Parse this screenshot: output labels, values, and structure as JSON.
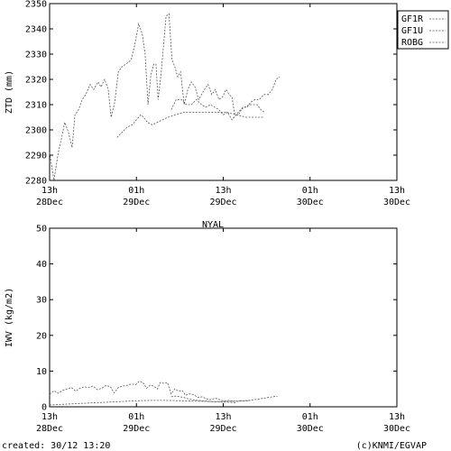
{
  "station": "NYAL",
  "footer": {
    "created": "created: 30/12 13:20",
    "credit": "(c)KNMI/EGVAP"
  },
  "colors": {
    "series": "#555555",
    "axis": "#000000",
    "background": "#ffffff"
  },
  "chart_data": [
    {
      "type": "line",
      "title": "",
      "ylabel": "ZTD (mm)",
      "ylim": [
        2280,
        2350
      ],
      "yticks": [
        2280,
        2290,
        2300,
        2310,
        2320,
        2330,
        2340,
        2350
      ],
      "xlim": [
        0,
        48
      ],
      "xticks": [
        {
          "x": 0,
          "line1": "13h",
          "line2": "28Dec"
        },
        {
          "x": 12,
          "line1": "01h",
          "line2": "29Dec"
        },
        {
          "x": 24,
          "line1": "13h",
          "line2": "29Dec"
        },
        {
          "x": 36,
          "line1": "01h",
          "line2": "30Dec"
        },
        {
          "x": 48,
          "line1": "13h",
          "line2": "30Dec"
        }
      ],
      "legend_position": "top-right",
      "series": [
        {
          "name": "GF1R",
          "points": [
            [
              0,
              2291
            ],
            [
              0.6,
              2280
            ],
            [
              1.2,
              2291
            ],
            [
              1.6,
              2296
            ],
            [
              2.1,
              2303
            ],
            [
              2.6,
              2299
            ],
            [
              3.1,
              2293
            ],
            [
              3.5,
              2306
            ],
            [
              4.0,
              2308
            ],
            [
              4.5,
              2312
            ],
            [
              5.0,
              2314
            ],
            [
              5.6,
              2318
            ],
            [
              6.1,
              2316
            ],
            [
              6.7,
              2319
            ],
            [
              7.1,
              2317
            ],
            [
              7.6,
              2320
            ],
            [
              8.1,
              2316
            ],
            [
              8.5,
              2305
            ],
            [
              9.0,
              2311
            ],
            [
              9.5,
              2323
            ],
            [
              10.0,
              2325
            ],
            [
              10.5,
              2326
            ],
            [
              11.0,
              2327
            ],
            [
              11.3,
              2328
            ],
            [
              11.8,
              2334
            ],
            [
              12.3,
              2342
            ],
            [
              12.8,
              2338
            ],
            [
              13.2,
              2330
            ],
            [
              13.6,
              2310
            ],
            [
              14.0,
              2322
            ],
            [
              14.4,
              2326
            ],
            [
              14.7,
              2326
            ],
            [
              15.0,
              2312
            ],
            [
              15.4,
              2322
            ],
            [
              15.8,
              2335
            ],
            [
              16.1,
              2345
            ],
            [
              16.5,
              2346
            ],
            [
              16.9,
              2328
            ],
            [
              17.3,
              2325
            ],
            [
              17.7,
              2321
            ],
            [
              18.1,
              2323
            ],
            [
              18.6,
              2310
            ],
            [
              19.1,
              2316
            ],
            [
              19.6,
              2319
            ],
            [
              20.1,
              2317
            ],
            [
              20.6,
              2312
            ],
            [
              21.0,
              2314
            ],
            [
              21.4,
              2316
            ],
            [
              21.9,
              2318
            ],
            [
              22.4,
              2314
            ],
            [
              22.9,
              2316
            ],
            [
              23.4,
              2312
            ],
            [
              23.9,
              2313
            ],
            [
              24.4,
              2316
            ],
            [
              24.8,
              2314
            ],
            [
              25.2,
              2313
            ],
            [
              25.6,
              2306
            ],
            [
              26.1,
              2306
            ],
            [
              26.7,
              2309
            ],
            [
              27.3,
              2309
            ],
            [
              27.8,
              2311
            ],
            [
              28.4,
              2312
            ],
            [
              29.0,
              2312
            ],
            [
              29.6,
              2314
            ],
            [
              30.2,
              2314
            ],
            [
              30.8,
              2316
            ],
            [
              31.3,
              2320
            ],
            [
              31.8,
              2321
            ]
          ]
        },
        {
          "name": "GF1U",
          "points": [
            [
              16.8,
              2308
            ],
            [
              17.5,
              2312
            ],
            [
              18.2,
              2312
            ],
            [
              18.9,
              2310
            ],
            [
              19.6,
              2310
            ],
            [
              20.3,
              2312
            ],
            [
              21.0,
              2310
            ],
            [
              21.6,
              2309
            ],
            [
              22.2,
              2310
            ],
            [
              22.8,
              2309
            ],
            [
              23.4,
              2308
            ],
            [
              24.0,
              2306
            ],
            [
              24.6,
              2307
            ],
            [
              25.2,
              2304
            ],
            [
              25.8,
              2306
            ],
            [
              26.4,
              2308
            ],
            [
              27.0,
              2309
            ],
            [
              27.6,
              2310
            ],
            [
              28.2,
              2310
            ],
            [
              28.7,
              2310
            ],
            [
              29.2,
              2308
            ],
            [
              29.7,
              2307
            ]
          ]
        },
        {
          "name": "ROBG",
          "points": [
            [
              9.3,
              2297
            ],
            [
              10.0,
              2299
            ],
            [
              10.7,
              2301
            ],
            [
              11.4,
              2302
            ],
            [
              12.0,
              2304
            ],
            [
              12.6,
              2306
            ],
            [
              13.0,
              2305
            ],
            [
              13.5,
              2303
            ],
            [
              14.2,
              2302
            ],
            [
              14.9,
              2303
            ],
            [
              15.6,
              2304
            ],
            [
              16.4,
              2305
            ],
            [
              17.4,
              2306
            ],
            [
              18.6,
              2307
            ],
            [
              20.0,
              2307
            ],
            [
              21.5,
              2307
            ],
            [
              23.0,
              2307
            ],
            [
              24.4,
              2307
            ],
            [
              25.8,
              2306
            ],
            [
              27.2,
              2305
            ],
            [
              28.4,
              2305
            ],
            [
              29.7,
              2305
            ]
          ]
        }
      ]
    },
    {
      "type": "line",
      "title": "NYAL",
      "ylabel": "IWV (kg/m2)",
      "ylim": [
        0,
        50
      ],
      "yticks": [
        0,
        10,
        20,
        30,
        40,
        50
      ],
      "xlim": [
        0,
        48
      ],
      "xticks": [
        {
          "x": 0,
          "line1": "13h",
          "line2": "28Dec"
        },
        {
          "x": 12,
          "line1": "01h",
          "line2": "29Dec"
        },
        {
          "x": 24,
          "line1": "13h",
          "line2": "29Dec"
        },
        {
          "x": 36,
          "line1": "01h",
          "line2": "30Dec"
        },
        {
          "x": 48,
          "line1": "13h",
          "line2": "30Dec"
        }
      ],
      "series": [
        {
          "name": "GF1R",
          "points": [
            [
              0,
              3.5
            ],
            [
              0.6,
              4.5
            ],
            [
              1.2,
              3.8
            ],
            [
              1.8,
              4.6
            ],
            [
              2.4,
              5.0
            ],
            [
              3.0,
              5.4
            ],
            [
              3.6,
              4.4
            ],
            [
              4.2,
              5.2
            ],
            [
              4.8,
              5.6
            ],
            [
              5.4,
              5.4
            ],
            [
              6.0,
              5.8
            ],
            [
              6.6,
              4.8
            ],
            [
              7.2,
              5.2
            ],
            [
              7.8,
              6.0
            ],
            [
              8.4,
              5.6
            ],
            [
              8.9,
              3.9
            ],
            [
              9.5,
              5.4
            ],
            [
              10.1,
              5.8
            ],
            [
              10.7,
              6.0
            ],
            [
              11.3,
              6.4
            ],
            [
              11.9,
              6.2
            ],
            [
              12.4,
              7.2
            ],
            [
              12.9,
              6.8
            ],
            [
              13.4,
              5.2
            ],
            [
              13.9,
              6.0
            ],
            [
              14.4,
              5.8
            ],
            [
              14.9,
              5.0
            ],
            [
              15.3,
              6.8
            ],
            [
              15.8,
              6.6
            ],
            [
              16.3,
              6.8
            ],
            [
              16.8,
              3.6
            ],
            [
              17.3,
              5.0
            ],
            [
              17.8,
              4.4
            ],
            [
              18.3,
              4.6
            ],
            [
              18.8,
              3.2
            ],
            [
              19.3,
              3.6
            ],
            [
              19.9,
              3.4
            ],
            [
              20.5,
              2.6
            ],
            [
              21.1,
              2.8
            ],
            [
              21.7,
              2.2
            ],
            [
              22.3,
              2.0
            ],
            [
              22.9,
              2.4
            ],
            [
              23.5,
              2.0
            ],
            [
              24.1,
              1.6
            ],
            [
              24.7,
              1.8
            ],
            [
              25.3,
              1.6
            ],
            [
              25.9,
              1.5
            ],
            [
              26.5,
              1.7
            ],
            [
              27.1,
              1.6
            ],
            [
              27.7,
              1.7
            ]
          ]
        },
        {
          "name": "GF1U",
          "points": [
            [
              16.8,
              2.8
            ],
            [
              17.4,
              3.0
            ],
            [
              18.0,
              2.8
            ],
            [
              18.6,
              2.6
            ],
            [
              19.2,
              2.2
            ],
            [
              19.8,
              2.0
            ],
            [
              20.4,
              1.8
            ],
            [
              21.0,
              1.7
            ],
            [
              21.6,
              1.6
            ],
            [
              22.2,
              1.5
            ],
            [
              22.8,
              1.4
            ],
            [
              23.4,
              1.4
            ],
            [
              24.0,
              1.3
            ],
            [
              24.6,
              1.3
            ],
            [
              25.2,
              1.2
            ],
            [
              25.8,
              1.1
            ]
          ]
        },
        {
          "name": "ROBG",
          "points": [
            [
              0,
              0.5
            ],
            [
              2.0,
              0.7
            ],
            [
              4.0,
              0.9
            ],
            [
              6.0,
              1.1
            ],
            [
              8.0,
              1.3
            ],
            [
              10.0,
              1.5
            ],
            [
              12.0,
              1.7
            ],
            [
              14.0,
              1.8
            ],
            [
              16.0,
              1.8
            ],
            [
              18.0,
              1.7
            ],
            [
              20.0,
              1.6
            ],
            [
              22.0,
              1.5
            ],
            [
              24.0,
              1.5
            ],
            [
              26.0,
              1.6
            ],
            [
              27.5,
              1.8
            ],
            [
              29.0,
              2.2
            ],
            [
              30.2,
              2.6
            ],
            [
              31.5,
              3.0
            ]
          ]
        }
      ]
    }
  ]
}
